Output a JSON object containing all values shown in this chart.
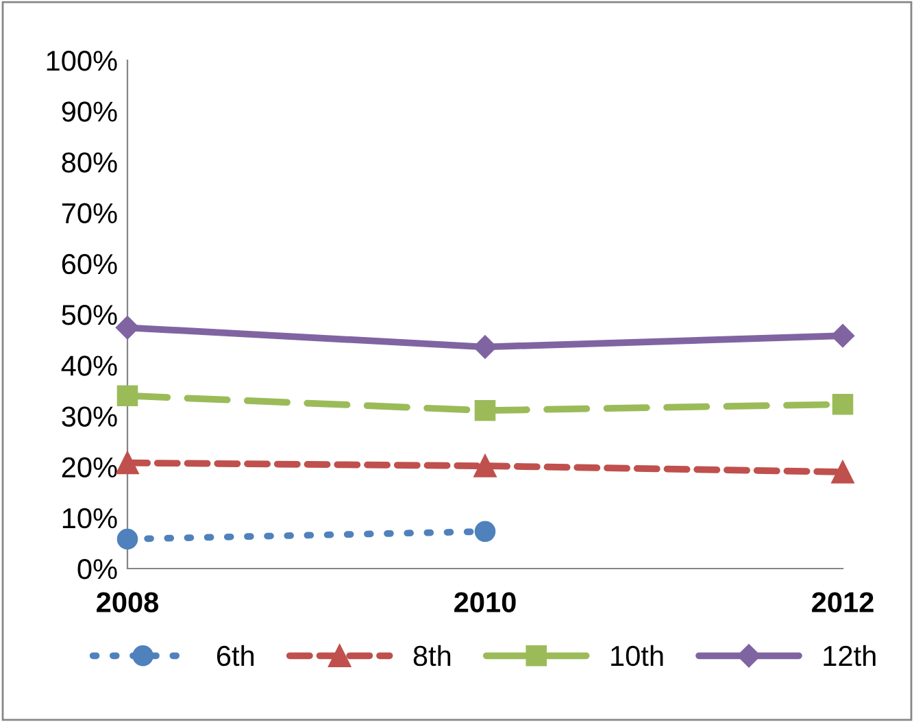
{
  "chart_data": {
    "type": "line",
    "categories": [
      "2008",
      "2010",
      "2012"
    ],
    "series": [
      {
        "name": "6th",
        "color": "#4f81bd",
        "values": [
          5.8,
          7.3,
          null
        ],
        "marker": "circle",
        "line_style": "dotted"
      },
      {
        "name": "8th",
        "color": "#c0504d",
        "values": [
          20.8,
          20.2,
          19.0
        ],
        "marker": "triangle",
        "line_style": "dashed"
      },
      {
        "name": "10th",
        "color": "#9bbb59",
        "values": [
          34.0,
          31.1,
          32.3
        ],
        "marker": "square",
        "line_style": "longdash"
      },
      {
        "name": "12th",
        "color": "#8064a2",
        "values": [
          47.4,
          43.6,
          45.8
        ],
        "marker": "diamond",
        "line_style": "solid"
      }
    ],
    "ylim": [
      0,
      100
    ],
    "yticks": [
      {
        "value": 0,
        "label": "0%"
      },
      {
        "value": 10,
        "label": "10%"
      },
      {
        "value": 20,
        "label": "20%"
      },
      {
        "value": 30,
        "label": "30%"
      },
      {
        "value": 40,
        "label": "40%"
      },
      {
        "value": 50,
        "label": "50%"
      },
      {
        "value": 60,
        "label": "60%"
      },
      {
        "value": 70,
        "label": "70%"
      },
      {
        "value": 80,
        "label": "80%"
      },
      {
        "value": 90,
        "label": "90%"
      },
      {
        "value": 100,
        "label": "100%"
      }
    ],
    "grid": false,
    "legend": "bottom"
  }
}
